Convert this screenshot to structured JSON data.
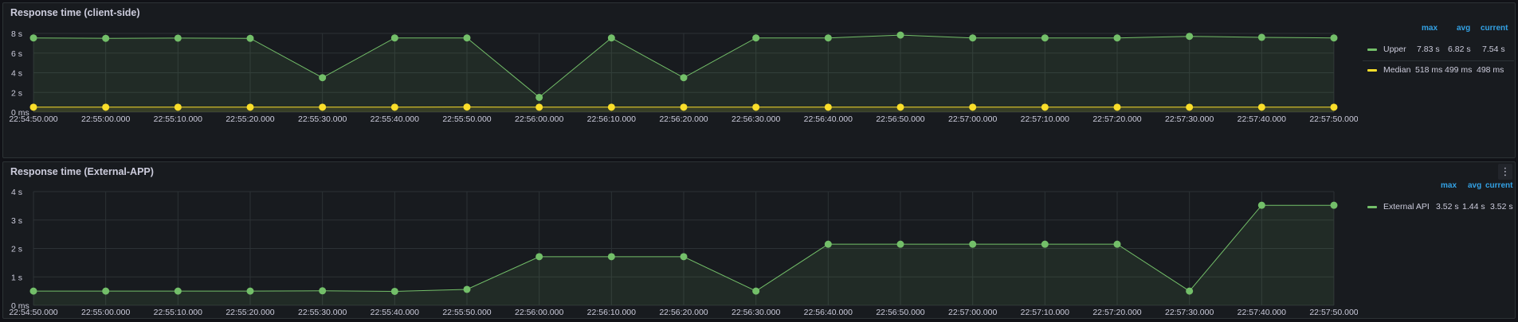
{
  "colors": {
    "upper": "#73bf69",
    "median": "#fade2a",
    "external": "#73bf69",
    "grid": "#2c3235",
    "legend_header": "#33a2e5"
  },
  "panels": [
    {
      "title": "Response time (client-side)",
      "legend": {
        "headers": {
          "max": "max",
          "avg": "avg",
          "current": "current"
        },
        "rows": [
          {
            "name": "Upper",
            "max": "7.83 s",
            "avg": "6.82 s",
            "current": "7.54 s",
            "color": "#73bf69"
          },
          {
            "name": "Median",
            "max": "518 ms",
            "avg": "499 ms",
            "current": "498 ms",
            "color": "#fade2a"
          }
        ]
      }
    },
    {
      "title": "Response time (External-APP)",
      "menu_icon": "vertical-ellipsis-icon",
      "legend": {
        "headers": {
          "max": "max",
          "avg": "avg",
          "current": "current"
        },
        "rows": [
          {
            "name": "External API",
            "max": "3.52 s",
            "avg": "1.44 s",
            "current": "3.52 s",
            "color": "#73bf69"
          }
        ]
      }
    }
  ],
  "chart_data": [
    {
      "type": "line",
      "title": "Response time (client-side)",
      "x": [
        "22:54:50.000",
        "22:55:00.000",
        "22:55:10.000",
        "22:55:20.000",
        "22:55:30.000",
        "22:55:40.000",
        "22:55:50.000",
        "22:56:00.000",
        "22:56:10.000",
        "22:56:20.000",
        "22:56:30.000",
        "22:56:40.000",
        "22:56:50.000",
        "22:57:00.000",
        "22:57:10.000",
        "22:57:20.000",
        "22:57:30.000",
        "22:57:40.000",
        "22:57:50.000"
      ],
      "yticks": [
        "0 ms",
        "2 s",
        "4 s",
        "6 s",
        "8 s"
      ],
      "ylim": [
        0,
        8
      ],
      "yunit": "s",
      "grid": true,
      "legend": "right",
      "series": [
        {
          "name": "Upper",
          "color": "#73bf69",
          "values": [
            7.54,
            7.5,
            7.52,
            7.5,
            3.5,
            7.54,
            7.54,
            1.5,
            7.54,
            3.5,
            7.54,
            7.54,
            7.83,
            7.54,
            7.54,
            7.54,
            7.7,
            7.6,
            7.54
          ]
        },
        {
          "name": "Median",
          "color": "#fade2a",
          "values": [
            0.5,
            0.5,
            0.5,
            0.5,
            0.5,
            0.5,
            0.518,
            0.5,
            0.5,
            0.5,
            0.5,
            0.5,
            0.5,
            0.5,
            0.5,
            0.5,
            0.5,
            0.5,
            0.498
          ]
        }
      ]
    },
    {
      "type": "line",
      "title": "Response time (External-APP)",
      "x": [
        "22:54:50.000",
        "22:55:00.000",
        "22:55:10.000",
        "22:55:20.000",
        "22:55:30.000",
        "22:55:40.000",
        "22:55:50.000",
        "22:56:00.000",
        "22:56:10.000",
        "22:56:20.000",
        "22:56:30.000",
        "22:56:40.000",
        "22:56:50.000",
        "22:57:00.000",
        "22:57:10.000",
        "22:57:20.000",
        "22:57:30.000",
        "22:57:40.000",
        "22:57:50.000"
      ],
      "yticks": [
        "0 ms",
        "1 s",
        "2 s",
        "3 s",
        "4 s"
      ],
      "ylim": [
        0,
        4
      ],
      "yunit": "s",
      "grid": true,
      "legend": "right",
      "series": [
        {
          "name": "External API",
          "color": "#73bf69",
          "values": [
            0.5,
            0.5,
            0.5,
            0.5,
            0.51,
            0.49,
            0.56,
            1.71,
            1.71,
            1.71,
            0.5,
            2.15,
            2.15,
            2.15,
            2.15,
            2.15,
            0.5,
            3.52,
            3.52
          ]
        }
      ]
    }
  ]
}
